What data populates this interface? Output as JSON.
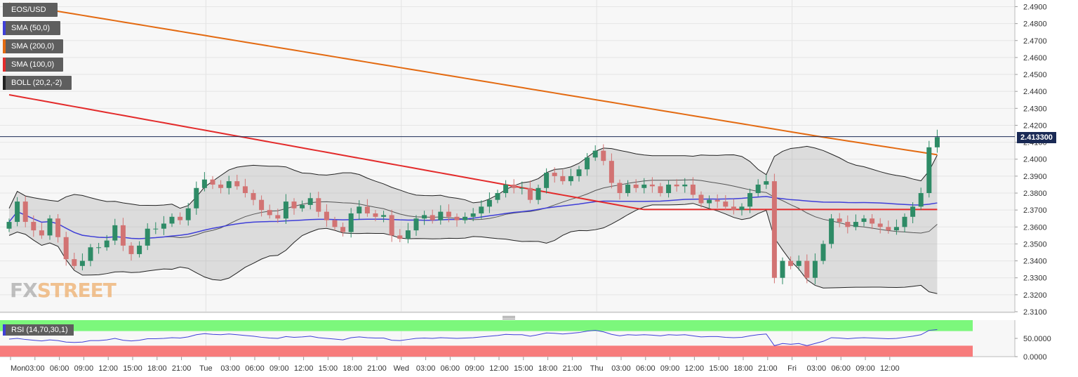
{
  "legend": [
    {
      "label": "EOS/USD",
      "color": "#5e5e5e"
    },
    {
      "label": "SMA (50,0)",
      "color": "#3f3fd8"
    },
    {
      "label": "SMA (200,0)",
      "color": "#e36a11"
    },
    {
      "label": "SMA (100,0)",
      "color": "#e32b2b"
    },
    {
      "label": "BOLL (20,2,-2)",
      "color": "#222222"
    }
  ],
  "rsi_label": "RSI (14,70,30,1)",
  "watermark": {
    "part1": "FX",
    "part2": "STREET"
  },
  "last_price": "2.413300",
  "colors": {
    "bull": "#2e8b66",
    "bear": "#d27373",
    "sma50": "#3f3fd8",
    "sma100": "#e32b2b",
    "sma200": "#e36a11",
    "rsi_high": "#7cf77c",
    "rsi_low": "#f77c7c"
  },
  "chart_data": {
    "type": "candlestick",
    "title": "EOS/USD",
    "timeframe_hours": 1,
    "ylim": [
      2.305,
      2.495
    ],
    "y_ticks": [
      "2.4900",
      "2.4800",
      "2.4700",
      "2.4600",
      "2.4500",
      "2.4400",
      "2.4300",
      "2.4200",
      "2.4100",
      "2.4000",
      "2.3900",
      "2.3800",
      "2.3700",
      "2.3600",
      "2.3500",
      "2.3400",
      "2.3300",
      "2.3200",
      "2.3100"
    ],
    "x_ticks": [
      "Mon",
      "03:00",
      "06:00",
      "09:00",
      "12:00",
      "15:00",
      "18:00",
      "21:00",
      "Tue",
      "03:00",
      "06:00",
      "09:00",
      "12:00",
      "15:00",
      "18:00",
      "21:00",
      "Wed",
      "03:00",
      "06:00",
      "09:00",
      "12:00",
      "15:00",
      "18:00",
      "21:00",
      "Thu",
      "03:00",
      "06:00",
      "09:00",
      "12:00",
      "15:00",
      "18:00",
      "21:00",
      "Fri",
      "03:00",
      "06:00",
      "09:00",
      "12:00"
    ],
    "closes": [
      2.363,
      2.375,
      2.363,
      2.358,
      2.355,
      2.365,
      2.354,
      2.341,
      2.337,
      2.34,
      2.348,
      2.348,
      2.352,
      2.361,
      2.349,
      2.344,
      2.349,
      2.359,
      2.359,
      2.362,
      2.366,
      2.364,
      2.371,
      2.383,
      2.388,
      2.385,
      2.383,
      2.387,
      2.384,
      2.38,
      2.376,
      2.37,
      2.367,
      2.365,
      2.375,
      2.371,
      2.373,
      2.377,
      2.369,
      2.364,
      2.36,
      2.357,
      2.368,
      2.372,
      2.368,
      2.366,
      2.367,
      2.355,
      2.353,
      2.358,
      2.365,
      2.367,
      2.364,
      2.369,
      2.366,
      2.364,
      2.366,
      2.368,
      2.372,
      2.376,
      2.38,
      2.385,
      2.383,
      2.383,
      2.376,
      2.383,
      2.392,
      2.39,
      2.387,
      2.39,
      2.394,
      2.401,
      2.405,
      2.399,
      2.386,
      2.38,
      2.385,
      2.383,
      2.385,
      2.384,
      2.38,
      2.385,
      2.384,
      2.385,
      2.379,
      2.374,
      2.376,
      2.375,
      2.372,
      2.37,
      2.372,
      2.38,
      2.385,
      2.387,
      2.33,
      2.34,
      2.337,
      2.34,
      2.33,
      2.34,
      2.35,
      2.365,
      2.363,
      2.36,
      2.363,
      2.365,
      2.362,
      2.36,
      2.358,
      2.36,
      2.366,
      2.372,
      2.38,
      2.407,
      2.413
    ],
    "rsi": {
      "ylim": [
        0,
        100
      ],
      "ticks": [
        "50.0000",
        "0.0000"
      ],
      "overbought": 70,
      "oversold": 30,
      "values": [
        48,
        50,
        47,
        45,
        43,
        46,
        44,
        40,
        39,
        40,
        44,
        44,
        46,
        50,
        45,
        43,
        45,
        49,
        49,
        50,
        52,
        51,
        54,
        60,
        63,
        61,
        60,
        62,
        60,
        58,
        56,
        53,
        51,
        50,
        55,
        53,
        54,
        56,
        52,
        50,
        48,
        46,
        52,
        54,
        52,
        51,
        51,
        45,
        44,
        47,
        50,
        51,
        50,
        52,
        51,
        50,
        51,
        52,
        54,
        56,
        58,
        61,
        60,
        60,
        56,
        60,
        65,
        64,
        62,
        64,
        66,
        70,
        72,
        68,
        61,
        57,
        60,
        59,
        60,
        59,
        57,
        60,
        59,
        60,
        57,
        54,
        55,
        55,
        53,
        52,
        53,
        57,
        60,
        62,
        30,
        36,
        34,
        36,
        30,
        36,
        42,
        52,
        51,
        49,
        51,
        52,
        51,
        50,
        49,
        50,
        53,
        56,
        60,
        72,
        74
      ]
    }
  }
}
